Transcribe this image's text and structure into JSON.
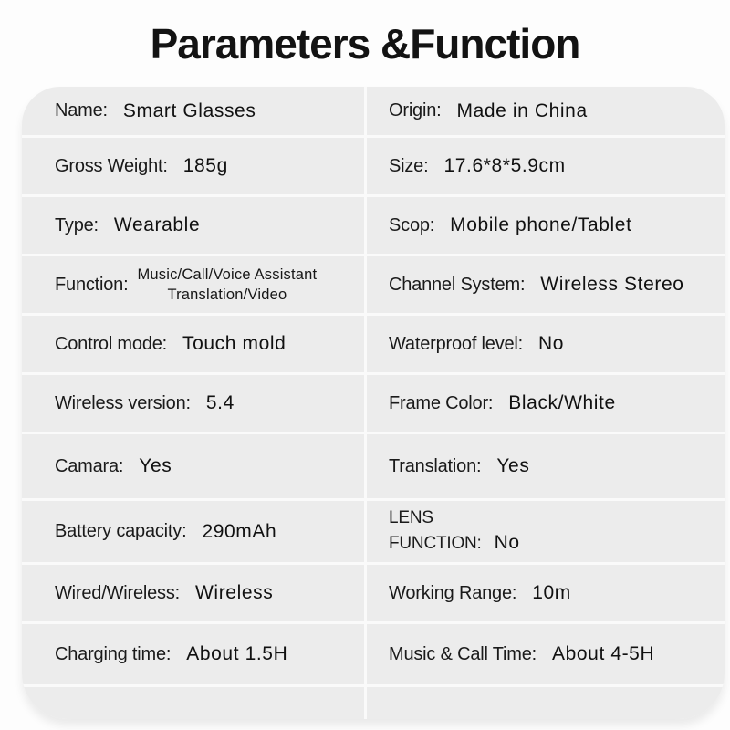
{
  "title": "Parameters &Function",
  "colors": {
    "page_background": "#fdfdfd",
    "cell_background": "#ececec",
    "divider": "#fafafa",
    "text": "#161616"
  },
  "table": {
    "rows": [
      {
        "left": {
          "label": "Name:",
          "value": "Smart Glasses"
        },
        "right": {
          "label": "Origin:",
          "value": "Made in China"
        }
      },
      {
        "left": {
          "label": "Gross Weight:",
          "value": "185g"
        },
        "right": {
          "label": "Size:",
          "value": "17.6*8*5.9cm"
        }
      },
      {
        "left": {
          "label": "Type:",
          "value": "Wearable"
        },
        "right": {
          "label": "Scop:",
          "value": "Mobile phone/Tablet"
        }
      },
      {
        "left": {
          "label": "Function:",
          "value": "Music/Call/Voice Assistant",
          "value_line2": "Translation/Video"
        },
        "right": {
          "label": "Channel System:",
          "value": "Wireless Stereo"
        }
      },
      {
        "left": {
          "label": "Control mode:",
          "value": "Touch mold"
        },
        "right": {
          "label": "Waterproof level:",
          "value": "No"
        }
      },
      {
        "left": {
          "label": "Wireless version:",
          "value": "5.4"
        },
        "right": {
          "label": "Frame Color:",
          "value": "Black/White"
        }
      },
      {
        "left": {
          "label": "Camara:",
          "value": "Yes"
        },
        "right": {
          "label": "Translation:",
          "value": "Yes"
        }
      },
      {
        "left": {
          "label": "Battery capacity:",
          "value": "290mAh"
        },
        "right": {
          "label_line1": "LENS",
          "label": "FUNCTION:",
          "value": "No"
        }
      },
      {
        "left": {
          "label": "Wired/Wireless:",
          "value": "Wireless"
        },
        "right": {
          "label": "Working Range:",
          "value": "10m"
        }
      },
      {
        "left": {
          "label": "Charging time:",
          "value": "About 1.5H"
        },
        "right": {
          "label": "Music & Call Time:",
          "value": "About 4-5H"
        }
      }
    ]
  }
}
